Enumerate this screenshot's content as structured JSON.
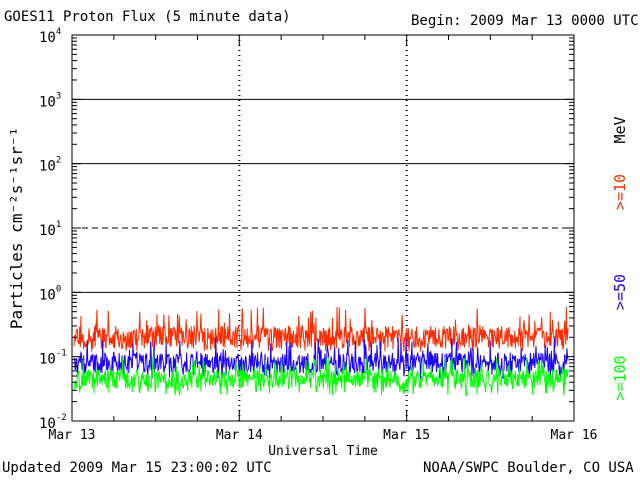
{
  "chart_data": {
    "type": "line",
    "title": "GOES11 Proton Flux (5 minute data)",
    "begin_label": "Begin: 2009 Mar 13 0000 UTC",
    "xlabel": "Universal Time",
    "ylabel": "Particles cm⁻²s⁻¹sr⁻¹",
    "y_scale": "log",
    "ylim": [
      0.01,
      10000
    ],
    "y_ticks": [
      {
        "base": "10",
        "exp": "-2"
      },
      {
        "base": "10",
        "exp": "-1"
      },
      {
        "base": "10",
        "exp": "0"
      },
      {
        "base": "10",
        "exp": "1"
      },
      {
        "base": "10",
        "exp": "2"
      },
      {
        "base": "10",
        "exp": "3"
      },
      {
        "base": "10",
        "exp": "4"
      }
    ],
    "x_ticks": [
      "Mar 13",
      "Mar 14",
      "Mar 15",
      "Mar 16"
    ],
    "xlim_days": [
      0,
      3
    ],
    "threshold_lines": [
      {
        "value": 1,
        "style": "solid"
      },
      {
        "value": 10,
        "style": "dashed"
      },
      {
        "value": 100,
        "style": "solid"
      },
      {
        "value": 1000,
        "style": "solid"
      }
    ],
    "unit_label": "MeV",
    "series": [
      {
        "name": ">=10",
        "color": "#ff2a00",
        "typical": 0.2,
        "range": [
          0.12,
          0.6
        ]
      },
      {
        "name": ">=50",
        "color": "#1a00ff",
        "typical": 0.08,
        "range": [
          0.045,
          0.2
        ]
      },
      {
        "name": ">=100",
        "color": "#00ff00",
        "typical": 0.045,
        "range": [
          0.025,
          0.1
        ]
      }
    ]
  },
  "footer": {
    "updated": "Updated 2009 Mar 15 23:00:02 UTC",
    "credit": "NOAA/SWPC Boulder, CO USA"
  }
}
